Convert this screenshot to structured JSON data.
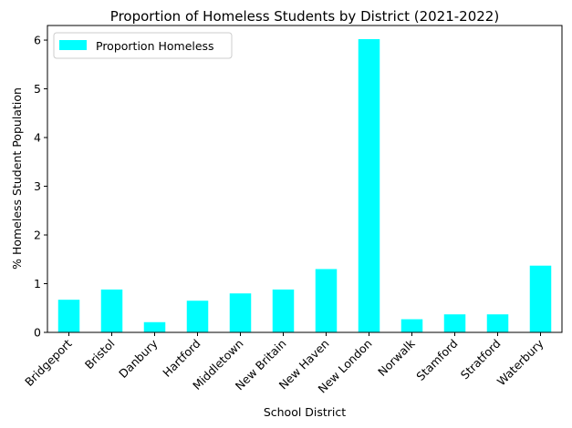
{
  "chart_data": {
    "type": "bar",
    "title": "Proportion of Homeless Students by District (2021-2022)",
    "xlabel": "School District",
    "ylabel": "% Homeless Student Population",
    "categories": [
      "Bridgeport",
      "Bristol",
      "Danbury",
      "Hartford",
      "Middletown",
      "New Britain",
      "New Haven",
      "New London",
      "Norwalk",
      "Stamford",
      "Stratford",
      "Waterbury"
    ],
    "series": [
      {
        "name": "Proportion Homeless",
        "values": [
          0.67,
          0.88,
          0.21,
          0.65,
          0.8,
          0.88,
          1.3,
          6.02,
          0.27,
          0.37,
          0.37,
          1.37
        ],
        "color": "#00ffff"
      }
    ],
    "ylim": [
      0,
      6.3
    ],
    "yticks": [
      0,
      1,
      2,
      3,
      4,
      5,
      6
    ],
    "grid": false,
    "legend_position": "top-left"
  }
}
